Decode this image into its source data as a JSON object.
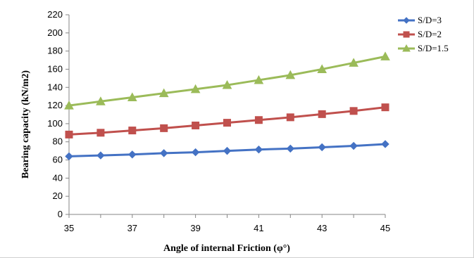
{
  "chart_data": {
    "type": "line",
    "title": "",
    "xlabel": "Angle of internal Friction (φ°)",
    "ylabel": "Bearing  capacity (kN/m2)",
    "xlim": [
      35,
      45
    ],
    "ylim": [
      0,
      220
    ],
    "x_ticks": [
      35,
      37,
      39,
      41,
      43,
      45
    ],
    "y_ticks": [
      0,
      20,
      40,
      60,
      80,
      100,
      120,
      140,
      160,
      180,
      200,
      220
    ],
    "x": [
      35,
      36,
      37,
      38,
      39,
      40,
      41,
      42,
      43,
      44,
      45
    ],
    "grid": false,
    "legend_position": "top-right",
    "series": [
      {
        "name": "S/D=3",
        "color": "#4472C4",
        "marker": "diamond",
        "values": [
          64,
          65,
          66,
          67.5,
          68.5,
          70,
          71.5,
          72.5,
          74,
          75.5,
          77.5
        ]
      },
      {
        "name": "S/D=2",
        "color": "#C0504D",
        "marker": "square",
        "values": [
          88,
          90,
          92.5,
          95,
          98,
          101,
          104,
          107,
          110.5,
          114,
          118
        ]
      },
      {
        "name": "S/D=1.5",
        "color": "#9BBB59",
        "marker": "triangle",
        "values": [
          120,
          124.5,
          129,
          133.5,
          138,
          142.5,
          148,
          153.5,
          160,
          167,
          174
        ]
      }
    ]
  }
}
